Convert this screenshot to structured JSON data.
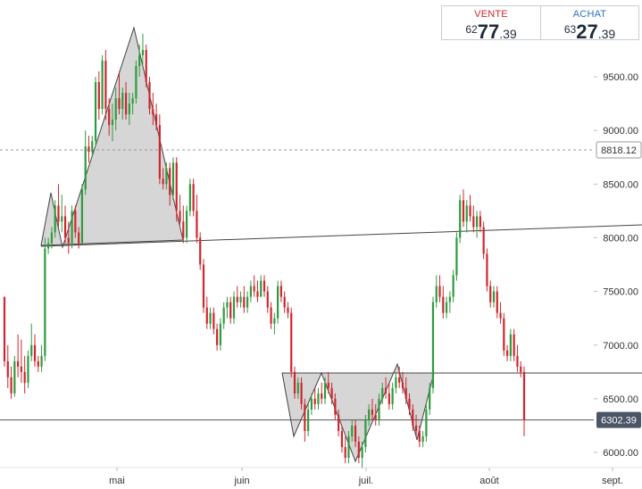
{
  "trade": {
    "sell": {
      "label": "VENTE",
      "price_prefix": "62",
      "price_main": "77",
      "price_suffix": ".39"
    },
    "buy": {
      "label": "ACHAT",
      "price_prefix": "63",
      "price_main": "27",
      "price_suffix": ".39"
    }
  },
  "chart_data": {
    "type": "candlestick",
    "ylim": [
      5850,
      9950
    ],
    "y_ticks": [
      6000,
      6500,
      7000,
      7500,
      8000,
      8500,
      9000,
      9500
    ],
    "y_tick_labels": [
      "6000.00",
      "6500.00",
      "7000.00",
      "7500.00",
      "8000.00",
      "8500.00",
      "9000.00",
      "9500.00"
    ],
    "x_labels": [
      "mai",
      "juin",
      "juil.",
      "août",
      "sept."
    ],
    "price_lines": [
      {
        "name": "reference",
        "value": 8818.12,
        "label": "8818.12",
        "style": "dashed",
        "color": "#999999"
      },
      {
        "name": "current",
        "value": 6302.39,
        "label": "6302.39",
        "style": "solid",
        "color": "#555555"
      }
    ],
    "colors": {
      "up": "#2e9b3e",
      "down": "#d0262f",
      "pattern_fill": "#cfcfcf",
      "line": "#444444",
      "current_tag": "#4a5566"
    },
    "ohlc": [
      [
        7450,
        7450,
        6800,
        6850
      ],
      [
        6850,
        7000,
        6600,
        6700
      ],
      [
        6700,
        6800,
        6500,
        6550
      ],
      [
        6550,
        6900,
        6520,
        6850
      ],
      [
        6850,
        7100,
        6700,
        6800
      ],
      [
        6800,
        7050,
        6650,
        6750
      ],
      [
        6750,
        6900,
        6550,
        6650
      ],
      [
        6650,
        6950,
        6600,
        6900
      ],
      [
        6900,
        7200,
        6850,
        7000
      ],
      [
        7000,
        7100,
        6800,
        6850
      ],
      [
        6850,
        6900,
        6750,
        6800
      ],
      [
        6800,
        7000,
        6750,
        6900
      ],
      [
        6900,
        8000,
        6850,
        7900
      ],
      [
        7900,
        8000,
        7850,
        7950
      ],
      [
        7950,
        8100,
        7900,
        8050
      ],
      [
        8050,
        8350,
        8000,
        8300
      ],
      [
        8300,
        8500,
        8100,
        8150
      ],
      [
        8150,
        8400,
        8050,
        8200
      ],
      [
        8200,
        8300,
        7950,
        8000
      ],
      [
        8000,
        8150,
        7850,
        7950
      ],
      [
        7950,
        8300,
        7900,
        8250
      ],
      [
        8250,
        8300,
        8000,
        8050
      ],
      [
        8050,
        8100,
        7900,
        7950
      ],
      [
        7950,
        8500,
        7950,
        8450
      ],
      [
        8450,
        9000,
        8400,
        8850
      ],
      [
        8850,
        8950,
        8700,
        8800
      ],
      [
        8800,
        8950,
        8750,
        8900
      ],
      [
        8900,
        9500,
        8850,
        9450
      ],
      [
        9450,
        9550,
        9100,
        9200
      ],
      [
        9200,
        9700,
        9150,
        9650
      ],
      [
        9650,
        9750,
        9100,
        9200
      ],
      [
        9200,
        9300,
        8950,
        9050
      ],
      [
        9050,
        9250,
        8900,
        9100
      ],
      [
        9100,
        9400,
        9000,
        9300
      ],
      [
        9300,
        9550,
        9150,
        9200
      ],
      [
        9200,
        9400,
        9100,
        9350
      ],
      [
        9350,
        9450,
        9100,
        9150
      ],
      [
        9150,
        9350,
        9050,
        9250
      ],
      [
        9250,
        9350,
        9150,
        9300
      ],
      [
        9300,
        9650,
        9250,
        9600
      ],
      [
        9600,
        9800,
        9500,
        9700
      ],
      [
        9700,
        9900,
        9600,
        9750
      ],
      [
        9750,
        9800,
        9400,
        9450
      ],
      [
        9450,
        9500,
        9150,
        9200
      ],
      [
        9200,
        9350,
        9050,
        9150
      ],
      [
        9150,
        9250,
        9000,
        9050
      ],
      [
        9050,
        9150,
        8500,
        8550
      ],
      [
        8550,
        8650,
        8450,
        8500
      ],
      [
        8500,
        8700,
        8450,
        8650
      ],
      [
        8650,
        8700,
        8300,
        8400
      ],
      [
        8400,
        8750,
        8350,
        8700
      ],
      [
        8700,
        8750,
        8150,
        8250
      ],
      [
        8250,
        8400,
        8100,
        8150
      ],
      [
        8150,
        8300,
        7950,
        8000
      ],
      [
        8000,
        8300,
        7950,
        8250
      ],
      [
        8250,
        8550,
        8200,
        8500
      ],
      [
        8500,
        8550,
        8200,
        8250
      ],
      [
        8250,
        8400,
        7950,
        8000
      ],
      [
        8000,
        8050,
        7700,
        7750
      ],
      [
        7750,
        7800,
        7300,
        7350
      ],
      [
        7350,
        7450,
        7150,
        7200
      ],
      [
        7200,
        7350,
        7150,
        7300
      ],
      [
        7300,
        7350,
        7100,
        7150
      ],
      [
        7150,
        7200,
        6950,
        7000
      ],
      [
        7000,
        7250,
        6950,
        7200
      ],
      [
        7200,
        7400,
        7150,
        7350
      ],
      [
        7350,
        7450,
        7250,
        7400
      ],
      [
        7400,
        7450,
        7200,
        7250
      ],
      [
        7250,
        7500,
        7200,
        7450
      ],
      [
        7450,
        7550,
        7350,
        7400
      ],
      [
        7400,
        7500,
        7350,
        7450
      ],
      [
        7450,
        7550,
        7300,
        7350
      ],
      [
        7350,
        7500,
        7300,
        7450
      ],
      [
        7450,
        7600,
        7400,
        7550
      ],
      [
        7550,
        7650,
        7450,
        7500
      ],
      [
        7500,
        7600,
        7400,
        7450
      ],
      [
        7450,
        7650,
        7450,
        7600
      ],
      [
        7600,
        7650,
        7450,
        7500
      ],
      [
        7500,
        7550,
        7300,
        7350
      ],
      [
        7350,
        7400,
        7150,
        7200
      ],
      [
        7200,
        7300,
        7100,
        7250
      ],
      [
        7250,
        7600,
        7200,
        7550
      ],
      [
        7550,
        7600,
        7400,
        7450
      ],
      [
        7450,
        7500,
        7300,
        7350
      ],
      [
        7350,
        7400,
        7250,
        7300
      ],
      [
        7300,
        7350,
        6700,
        6750
      ],
      [
        6750,
        6800,
        6500,
        6550
      ],
      [
        6550,
        6700,
        6500,
        6650
      ],
      [
        6650,
        6700,
        6400,
        6450
      ],
      [
        6450,
        6500,
        6100,
        6200
      ],
      [
        6200,
        6450,
        6150,
        6400
      ],
      [
        6400,
        6550,
        6350,
        6500
      ],
      [
        6500,
        6600,
        6400,
        6450
      ],
      [
        6450,
        6600,
        6400,
        6550
      ],
      [
        6550,
        6650,
        6450,
        6500
      ],
      [
        6500,
        6700,
        6450,
        6650
      ],
      [
        6650,
        6750,
        6550,
        6600
      ],
      [
        6600,
        6650,
        6450,
        6500
      ],
      [
        6500,
        6550,
        6300,
        6350
      ],
      [
        6350,
        6400,
        6150,
        6200
      ],
      [
        6200,
        6250,
        6000,
        6050
      ],
      [
        6050,
        6150,
        5900,
        5950
      ],
      [
        5950,
        6200,
        5900,
        6150
      ],
      [
        6150,
        6300,
        6100,
        6250
      ],
      [
        6250,
        6300,
        6050,
        6100
      ],
      [
        6100,
        6150,
        5900,
        5950
      ],
      [
        5950,
        6100,
        5850,
        6050
      ],
      [
        6050,
        6350,
        6000,
        6300
      ],
      [
        6300,
        6450,
        6250,
        6400
      ],
      [
        6400,
        6500,
        6300,
        6350
      ],
      [
        6350,
        6450,
        6250,
        6300
      ],
      [
        6300,
        6550,
        6250,
        6500
      ],
      [
        6500,
        6650,
        6450,
        6600
      ],
      [
        6600,
        6700,
        6500,
        6550
      ],
      [
        6550,
        6650,
        6400,
        6450
      ],
      [
        6450,
        6650,
        6400,
        6600
      ],
      [
        6600,
        6750,
        6550,
        6700
      ],
      [
        6700,
        6800,
        6600,
        6650
      ],
      [
        6650,
        6750,
        6550,
        6600
      ],
      [
        6600,
        6700,
        6450,
        6500
      ],
      [
        6500,
        6550,
        6350,
        6400
      ],
      [
        6400,
        6450,
        6200,
        6250
      ],
      [
        6250,
        6350,
        6150,
        6200
      ],
      [
        6200,
        6250,
        6050,
        6100
      ],
      [
        6100,
        6200,
        6050,
        6150
      ],
      [
        6150,
        6450,
        6100,
        6400
      ],
      [
        6400,
        6650,
        6350,
        6600
      ],
      [
        6600,
        7450,
        6550,
        7400
      ],
      [
        7400,
        7650,
        7350,
        7550
      ],
      [
        7550,
        7650,
        7400,
        7450
      ],
      [
        7450,
        7550,
        7250,
        7300
      ],
      [
        7300,
        7450,
        7250,
        7400
      ],
      [
        7400,
        7500,
        7300,
        7450
      ],
      [
        7450,
        7700,
        7400,
        7650
      ],
      [
        7650,
        8050,
        7600,
        8000
      ],
      [
        8000,
        8400,
        7950,
        8350
      ],
      [
        8350,
        8450,
        8100,
        8150
      ],
      [
        8150,
        8350,
        8050,
        8300
      ],
      [
        8300,
        8400,
        8150,
        8200
      ],
      [
        8200,
        8300,
        8050,
        8100
      ],
      [
        8100,
        8250,
        8000,
        8200
      ],
      [
        8200,
        8250,
        8050,
        8100
      ],
      [
        8100,
        8150,
        7800,
        7850
      ],
      [
        7850,
        7900,
        7500,
        7550
      ],
      [
        7550,
        7600,
        7350,
        7400
      ],
      [
        7400,
        7550,
        7350,
        7500
      ],
      [
        7500,
        7550,
        7250,
        7300
      ],
      [
        7300,
        7400,
        7200,
        7250
      ],
      [
        7250,
        7300,
        6900,
        6950
      ],
      [
        6950,
        7000,
        6850,
        6900
      ],
      [
        6900,
        7150,
        6850,
        7100
      ],
      [
        7100,
        7150,
        6850,
        6900
      ],
      [
        6900,
        7000,
        6750,
        6800
      ],
      [
        6800,
        6850,
        6700,
        6750
      ],
      [
        6750,
        6800,
        6150,
        6300
      ]
    ]
  }
}
